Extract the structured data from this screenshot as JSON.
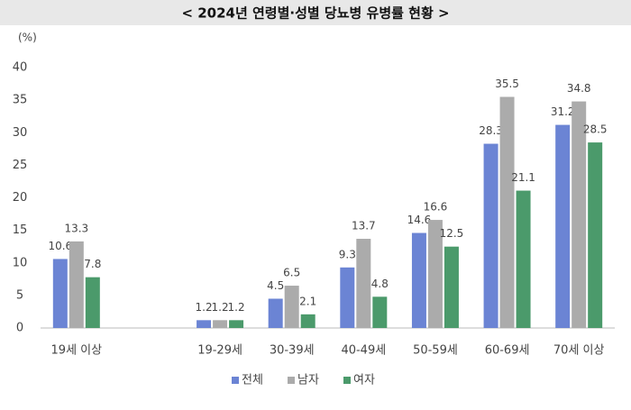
{
  "chart_data": {
    "type": "bar",
    "title": "< 2024년 연령별·성별 당뇨병 유병률 현황 >",
    "y_unit": "(%)",
    "categories": [
      "19세 이상",
      null,
      "19-29세",
      "30-39세",
      "40-49세",
      "50-59세",
      "60-69세",
      "70세 이상"
    ],
    "series": [
      {
        "name": "전체",
        "color": "#6b84d4",
        "values": [
          10.6,
          null,
          1.2,
          4.5,
          9.3,
          14.6,
          28.3,
          31.2
        ]
      },
      {
        "name": "남자",
        "color": "#ababab",
        "values": [
          13.3,
          null,
          1.2,
          6.5,
          13.7,
          16.6,
          35.5,
          34.8
        ]
      },
      {
        "name": "여자",
        "color": "#4b9a6b",
        "values": [
          7.8,
          null,
          1.2,
          2.1,
          4.8,
          12.5,
          21.1,
          28.5
        ]
      }
    ],
    "ylim": [
      0,
      40
    ],
    "yticks": [
      0,
      5,
      10,
      15,
      20,
      25,
      30,
      35,
      40
    ],
    "grid": false,
    "legend": "bottom"
  }
}
